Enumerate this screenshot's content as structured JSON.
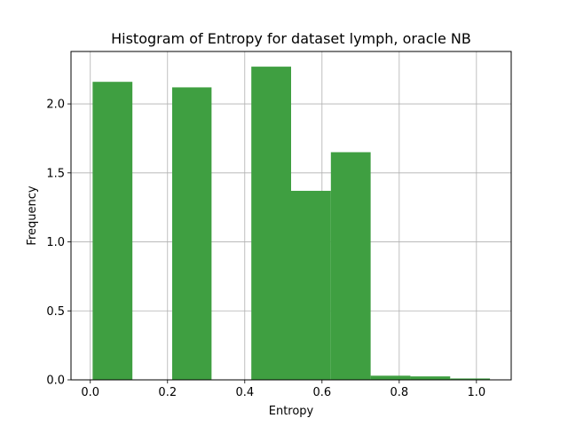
{
  "chart_data": {
    "type": "bar",
    "title": "Histogram of Entropy for dataset lymph, oracle NB",
    "xlabel": "Entropy",
    "ylabel": "Frequency",
    "xlim": [
      -0.05,
      1.09
    ],
    "ylim": [
      0,
      2.38
    ],
    "grid": true,
    "bar_color": "#3f9f41",
    "bins": [
      {
        "x0": 0.006,
        "x1": 0.109,
        "value": 2.16
      },
      {
        "x0": 0.109,
        "x1": 0.212,
        "value": 0.0
      },
      {
        "x0": 0.212,
        "x1": 0.314,
        "value": 2.12
      },
      {
        "x0": 0.314,
        "x1": 0.417,
        "value": 0.0
      },
      {
        "x0": 0.417,
        "x1": 0.52,
        "value": 2.27
      },
      {
        "x0": 0.52,
        "x1": 0.623,
        "value": 1.37
      },
      {
        "x0": 0.623,
        "x1": 0.726,
        "value": 1.65
      },
      {
        "x0": 0.726,
        "x1": 0.829,
        "value": 0.03
      },
      {
        "x0": 0.829,
        "x1": 0.932,
        "value": 0.025
      },
      {
        "x0": 0.932,
        "x1": 1.035,
        "value": 0.01
      }
    ],
    "xticks": [
      {
        "value": 0.0,
        "label": "0.0"
      },
      {
        "value": 0.2,
        "label": "0.2"
      },
      {
        "value": 0.4,
        "label": "0.4"
      },
      {
        "value": 0.6,
        "label": "0.6"
      },
      {
        "value": 0.8,
        "label": "0.8"
      },
      {
        "value": 1.0,
        "label": "1.0"
      }
    ],
    "yticks": [
      {
        "value": 0.0,
        "label": "0.0"
      },
      {
        "value": 0.5,
        "label": "0.5"
      },
      {
        "value": 1.0,
        "label": "1.0"
      },
      {
        "value": 1.5,
        "label": "1.5"
      },
      {
        "value": 2.0,
        "label": "2.0"
      }
    ]
  }
}
